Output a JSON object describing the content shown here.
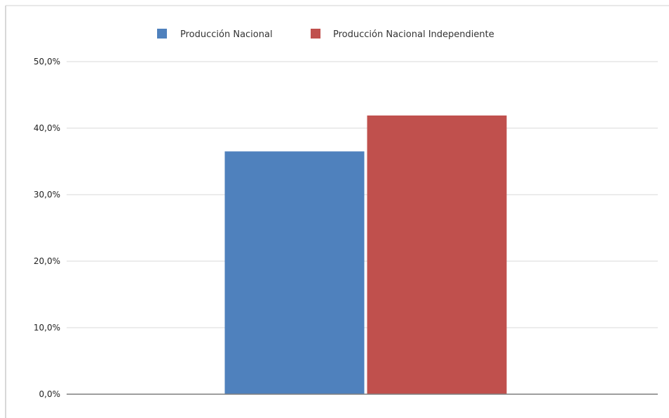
{
  "chart_data": {
    "type": "bar",
    "categories": [
      ""
    ],
    "series": [
      {
        "name": "Producción Nacional",
        "values": [
          36.5
        ],
        "color": "#4F81BD"
      },
      {
        "name": "Producción Nacional Independiente",
        "values": [
          41.9
        ],
        "color": "#C0504D"
      }
    ],
    "ylim": [
      0,
      50
    ],
    "yticks": [
      0,
      10,
      20,
      30,
      40,
      50
    ],
    "ytick_labels": [
      "0,0%",
      "10,0%",
      "20,0%",
      "30,0%",
      "40,0%",
      "50,0%"
    ],
    "xlabel": "",
    "ylabel": "",
    "title": "",
    "grid": true,
    "legend_position": "top"
  },
  "colors": {
    "gridline": "#d9d9d9",
    "axis": "#7f7f7f",
    "frame": "#b0b0b0"
  }
}
